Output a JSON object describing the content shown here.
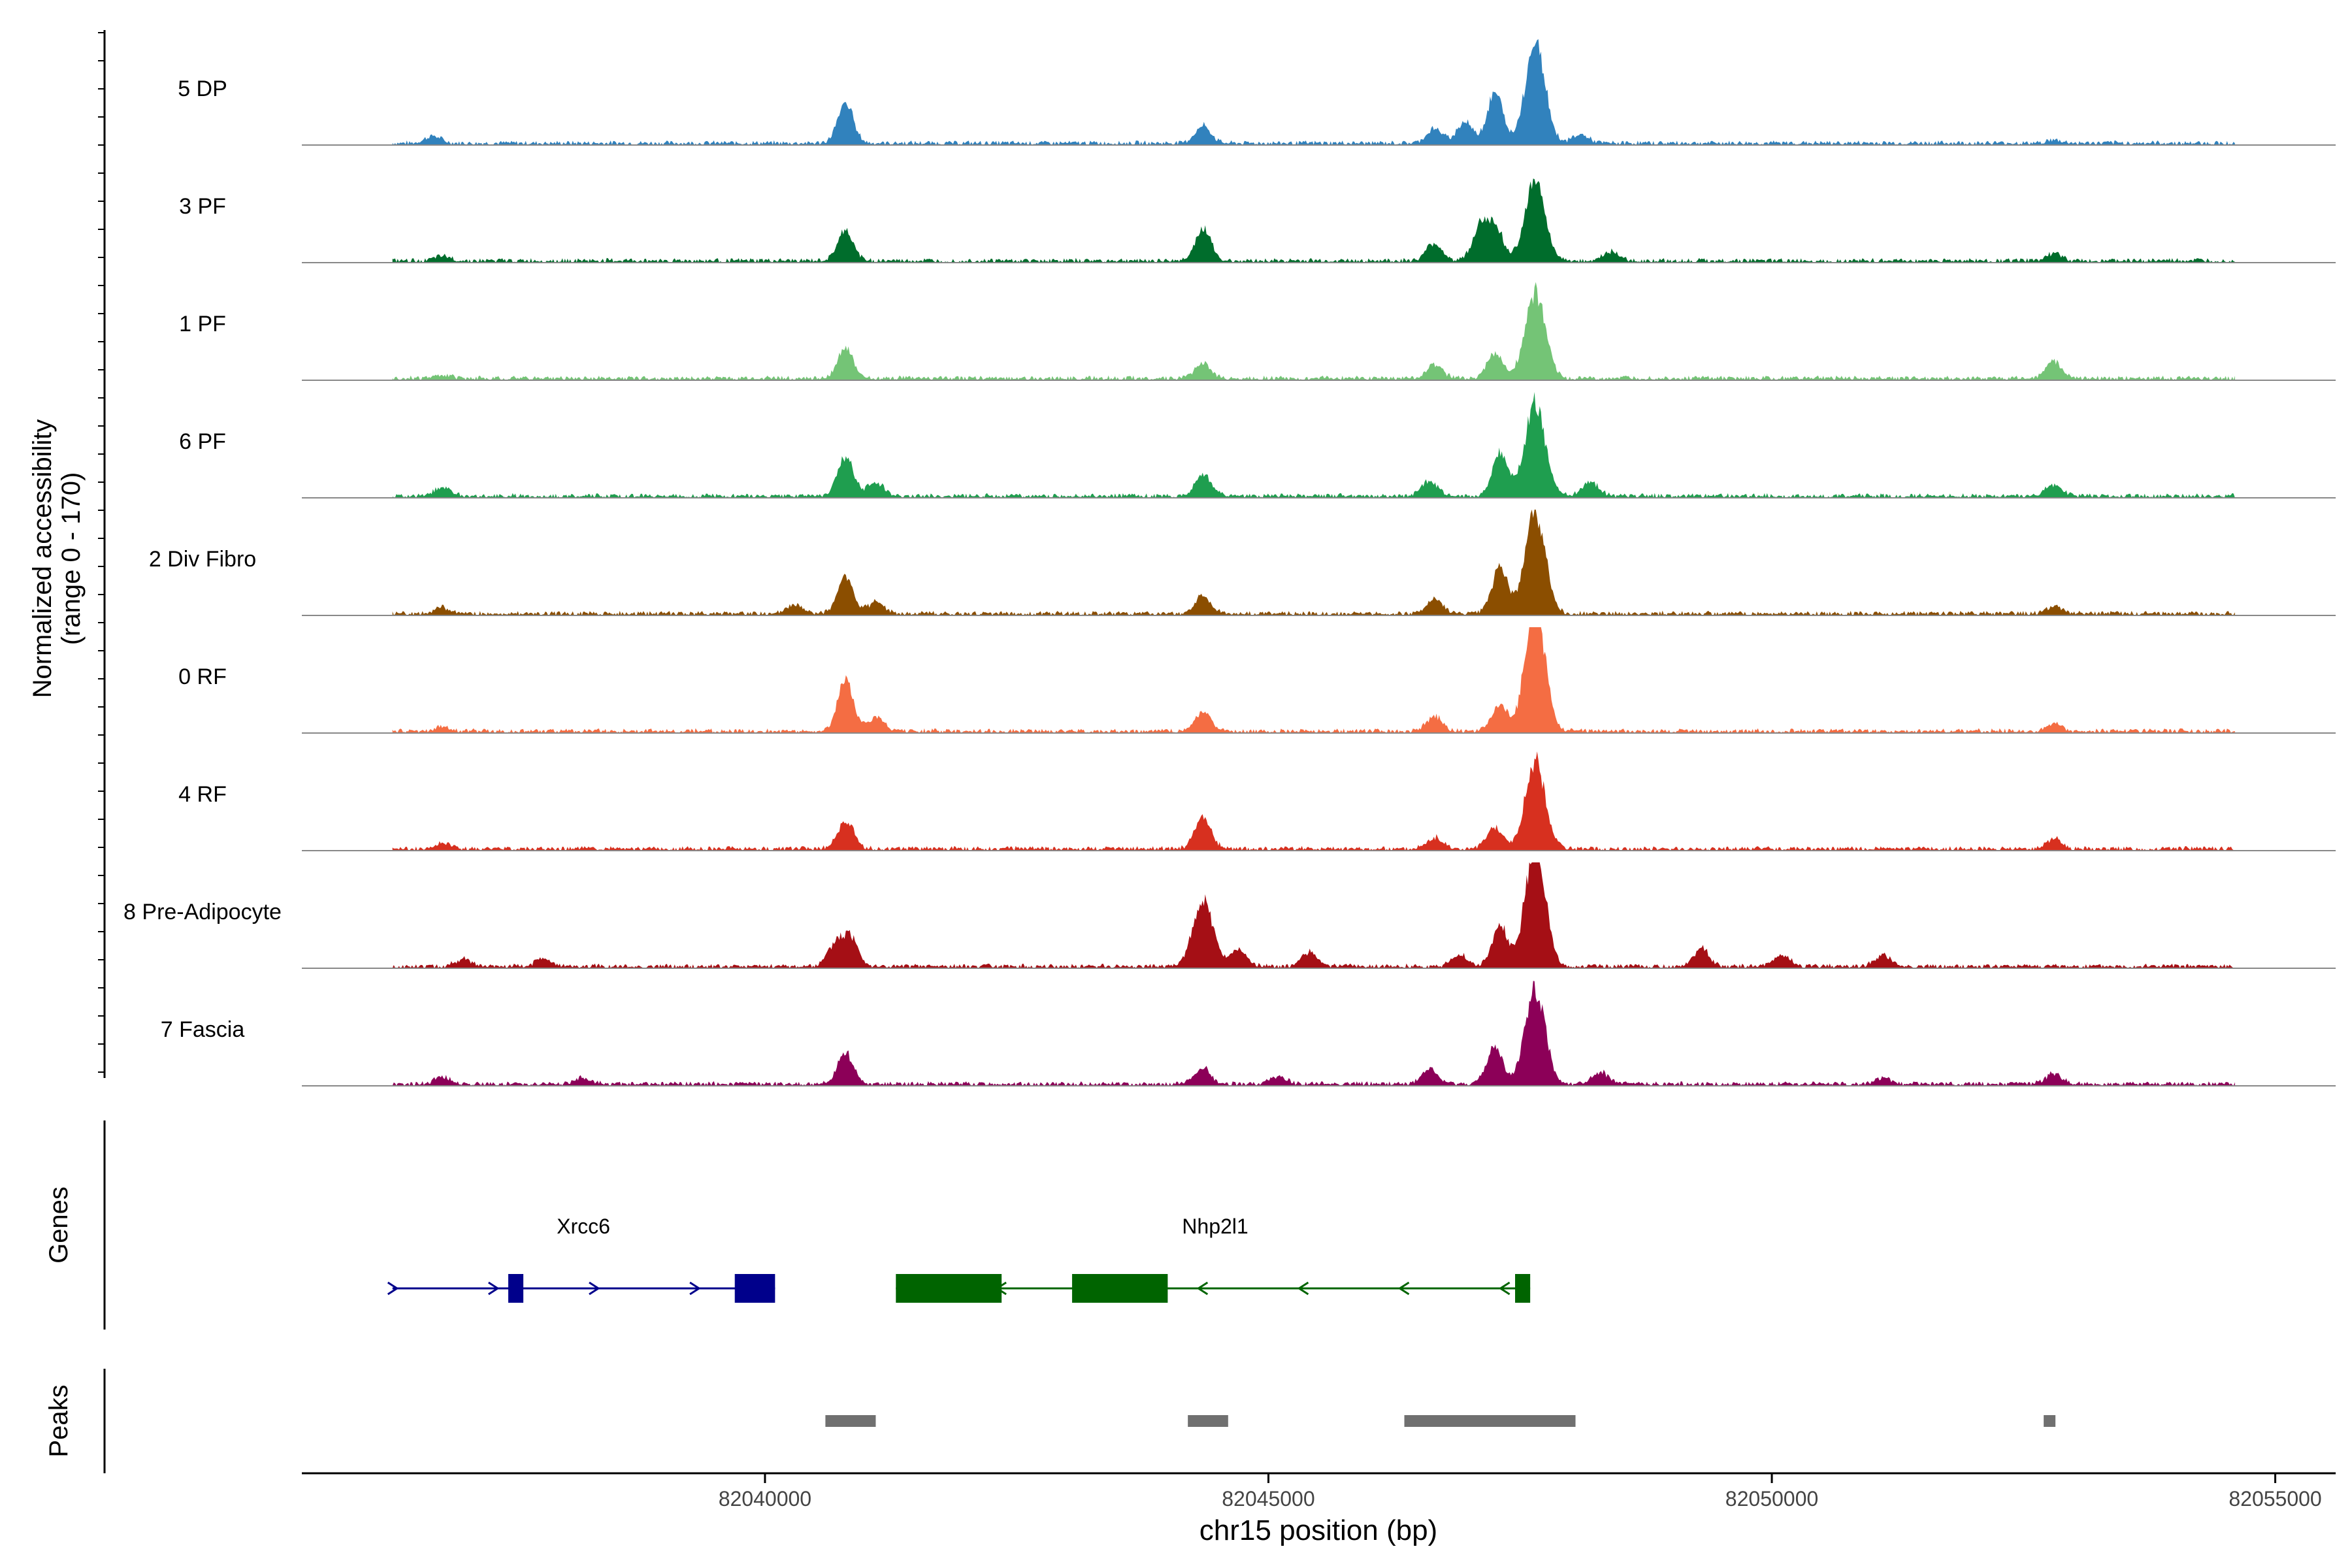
{
  "chart_data": {
    "type": "area",
    "title": "",
    "chromosome": "chr15",
    "xlabel": "chr15 position (bp)",
    "ylabel_line1": "Normalized accessibility",
    "ylabel_line2": "(range 0 - 170)",
    "y_range": [
      0,
      170
    ],
    "xlim": [
      82035400,
      82055600
    ],
    "x_ticks": [
      82040000,
      82045000,
      82050000,
      82055000
    ],
    "x_tick_labels": [
      "82040000",
      "82045000",
      "82050000",
      "82055000"
    ],
    "genes_label": "Genes",
    "peaks_label": "Peaks",
    "tracks": [
      {
        "name": "5 DP",
        "color": "#3182bd",
        "peaks": [
          [
            82036700,
            5
          ],
          [
            82040800,
            28
          ],
          [
            82044350,
            12
          ],
          [
            82046650,
            10
          ],
          [
            82046950,
            15
          ],
          [
            82047250,
            35
          ],
          [
            82047650,
            70
          ],
          [
            82048100,
            6
          ],
          [
            82052800,
            2
          ]
        ]
      },
      {
        "name": "3 PF",
        "color": "#006d2c",
        "peaks": [
          [
            82036800,
            3
          ],
          [
            82040800,
            20
          ],
          [
            82044350,
            22
          ],
          [
            82046650,
            12
          ],
          [
            82047100,
            22
          ],
          [
            82047250,
            24
          ],
          [
            82047650,
            55
          ],
          [
            82048400,
            6
          ],
          [
            82052800,
            5
          ]
        ]
      },
      {
        "name": "1 PF",
        "color": "#74c476",
        "peaks": [
          [
            82036800,
            2
          ],
          [
            82040800,
            20
          ],
          [
            82044350,
            10
          ],
          [
            82046650,
            10
          ],
          [
            82047250,
            18
          ],
          [
            82047650,
            60
          ],
          [
            82052800,
            12
          ]
        ]
      },
      {
        "name": "6 PF",
        "color": "#1f9e4f",
        "peaks": [
          [
            82036800,
            6
          ],
          [
            82040800,
            28
          ],
          [
            82041100,
            10
          ],
          [
            82044350,
            16
          ],
          [
            82046600,
            10
          ],
          [
            82047300,
            30
          ],
          [
            82047650,
            65
          ],
          [
            82048200,
            10
          ],
          [
            82052800,
            8
          ]
        ]
      },
      {
        "name": "2 Div Fibro",
        "color": "#8b4e00",
        "peaks": [
          [
            82036800,
            4
          ],
          [
            82040300,
            6
          ],
          [
            82040800,
            25
          ],
          [
            82041100,
            8
          ],
          [
            82044350,
            13
          ],
          [
            82046650,
            10
          ],
          [
            82047300,
            32
          ],
          [
            82047650,
            70
          ],
          [
            82052800,
            5
          ]
        ]
      },
      {
        "name": "0 RF",
        "color": "#f46d43",
        "peaks": [
          [
            82036800,
            3
          ],
          [
            82040800,
            35
          ],
          [
            82041100,
            10
          ],
          [
            82044350,
            14
          ],
          [
            82046650,
            10
          ],
          [
            82047300,
            18
          ],
          [
            82047650,
            85
          ],
          [
            82052800,
            5
          ]
        ]
      },
      {
        "name": "4 RF",
        "color": "#d7301f",
        "peaks": [
          [
            82036800,
            4
          ],
          [
            82040800,
            20
          ],
          [
            82044350,
            23
          ],
          [
            82046650,
            8
          ],
          [
            82047250,
            15
          ],
          [
            82047650,
            60
          ],
          [
            82052800,
            7
          ]
        ]
      },
      {
        "name": "8 Pre-Adipocyte",
        "color": "#a50f15",
        "peaks": [
          [
            82037000,
            5
          ],
          [
            82037800,
            5
          ],
          [
            82040700,
            15
          ],
          [
            82040850,
            20
          ],
          [
            82044350,
            45
          ],
          [
            82044700,
            12
          ],
          [
            82045400,
            10
          ],
          [
            82046900,
            8
          ],
          [
            82047300,
            28
          ],
          [
            82047650,
            85
          ],
          [
            82049300,
            12
          ],
          [
            82050100,
            8
          ],
          [
            82051100,
            8
          ]
        ]
      },
      {
        "name": "7 Fascia",
        "color": "#8c0058",
        "peaks": [
          [
            82036800,
            5
          ],
          [
            82038200,
            4
          ],
          [
            82040800,
            22
          ],
          [
            82044350,
            11
          ],
          [
            82045100,
            5
          ],
          [
            82046600,
            10
          ],
          [
            82047250,
            25
          ],
          [
            82047650,
            65
          ],
          [
            82048300,
            8
          ],
          [
            82051100,
            4
          ],
          [
            82052800,
            7
          ]
        ]
      }
    ],
    "genes": [
      {
        "name": "Xrcc6",
        "color": "#00008b",
        "strand": "+",
        "start": 82036300,
        "end": 82040100,
        "exons": [
          [
            82037450,
            82037600
          ],
          [
            82039700,
            82040100
          ]
        ],
        "arrows": [
          82036300,
          82037300,
          82038300,
          82039300
        ]
      },
      {
        "name": "Nhp2l1",
        "color": "#006400",
        "strand": "-",
        "start": 82041300,
        "end": 82047600,
        "exons": [
          [
            82041300,
            82042350
          ],
          [
            82043050,
            82044000
          ],
          [
            82047450,
            82047600
          ]
        ],
        "arrows": [
          82042350,
          82044350,
          82045350,
          82046350,
          82047350
        ]
      }
    ],
    "peak_regions": [
      [
        82040600,
        82041100
      ],
      [
        82044200,
        82044600
      ],
      [
        82046350,
        82048050
      ],
      [
        82052700,
        82052800
      ]
    ]
  }
}
